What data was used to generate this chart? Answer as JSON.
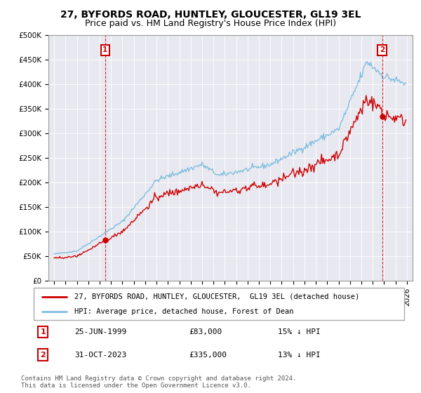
{
  "title": "27, BYFORDS ROAD, HUNTLEY, GLOUCESTER, GL19 3EL",
  "subtitle": "Price paid vs. HM Land Registry's House Price Index (HPI)",
  "ylim": [
    0,
    500000
  ],
  "yticks": [
    0,
    50000,
    100000,
    150000,
    200000,
    250000,
    300000,
    350000,
    400000,
    450000,
    500000
  ],
  "ytick_labels": [
    "£0",
    "£50K",
    "£100K",
    "£150K",
    "£200K",
    "£250K",
    "£300K",
    "£350K",
    "£400K",
    "£450K",
    "£500K"
  ],
  "xlim_start": 1994.5,
  "xlim_end": 2026.5,
  "purchase1_date": 1999.48,
  "purchase1_price": 83000,
  "purchase2_date": 2023.83,
  "purchase2_price": 335000,
  "line_color_hpi": "#7fbfdf",
  "line_color_price": "#cc0000",
  "dashed_color": "#cc0000",
  "legend_line1": "27, BYFORDS ROAD, HUNTLEY, GLOUCESTER,  GL19 3EL (detached house)",
  "legend_line2": "HPI: Average price, detached house, Forest of Dean",
  "annotation1_date": "25-JUN-1999",
  "annotation1_price": "£83,000",
  "annotation1_hpi": "15% ↓ HPI",
  "annotation2_date": "31-OCT-2023",
  "annotation2_price": "£335,000",
  "annotation2_hpi": "13% ↓ HPI",
  "footer": "Contains HM Land Registry data © Crown copyright and database right 2024.\nThis data is licensed under the Open Government Licence v3.0.",
  "background_color": "#ffffff",
  "plot_bg_color": "#e8e8f0",
  "grid_color": "#ffffff",
  "title_fontsize": 10,
  "subtitle_fontsize": 9,
  "axis_fontsize": 7.5
}
